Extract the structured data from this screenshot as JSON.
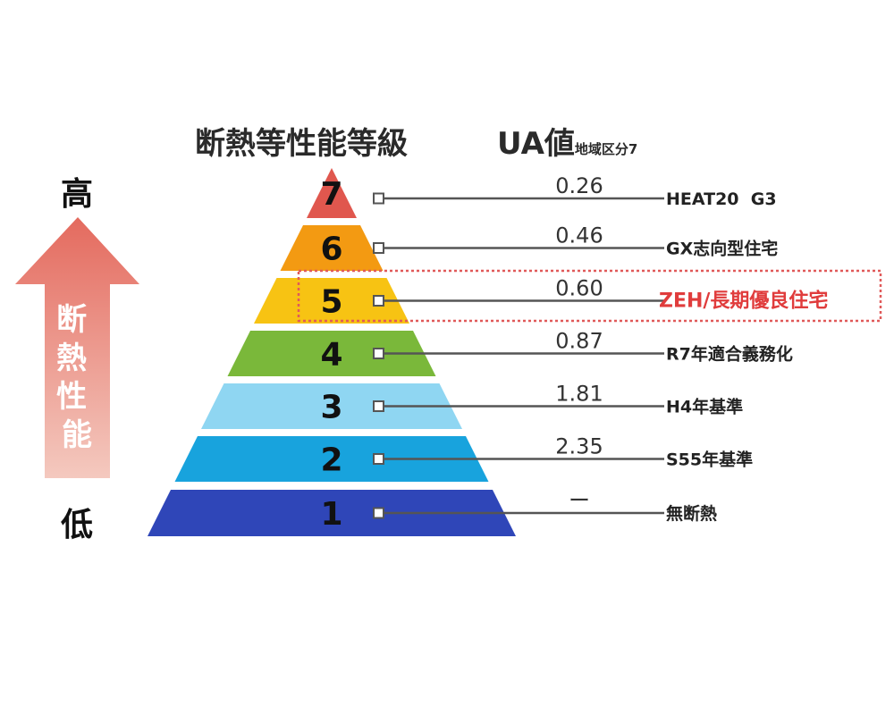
{
  "header": {
    "grade_title": "断熱等性能等級",
    "ua_title": "UA値",
    "ua_subtitle": "地域区分7"
  },
  "side_axis": {
    "high": "高",
    "label": "断熱性能",
    "low": "低"
  },
  "levels": [
    {
      "grade": "7",
      "ua": "0.26",
      "standard": "HEAT20  G3",
      "color": "#e0574e",
      "highlight": false
    },
    {
      "grade": "6",
      "ua": "0.46",
      "standard": "GX志向型住宅",
      "color": "#f39a12",
      "highlight": false
    },
    {
      "grade": "5",
      "ua": "0.60",
      "standard": "ZEH/長期優良住宅",
      "color": "#f7c313",
      "highlight": true
    },
    {
      "grade": "4",
      "ua": "0.87",
      "standard": "R7年適合義務化",
      "color": "#7ab83a",
      "highlight": false
    },
    {
      "grade": "3",
      "ua": "1.81",
      "standard": "H4年基準",
      "color": "#8fd6f2",
      "highlight": false
    },
    {
      "grade": "2",
      "ua": "2.35",
      "standard": "S55年基準",
      "color": "#18a3dd",
      "highlight": false
    },
    {
      "grade": "1",
      "ua": "ー",
      "standard": "無断熱",
      "color": "#2f46b8",
      "highlight": false
    }
  ],
  "colors": {
    "highlight_text": "#e03c3c",
    "highlight_border": "#e05a5a",
    "arrow_top": "#e46a5e",
    "arrow_bottom": "#f4c9bf",
    "line": "#555555"
  }
}
